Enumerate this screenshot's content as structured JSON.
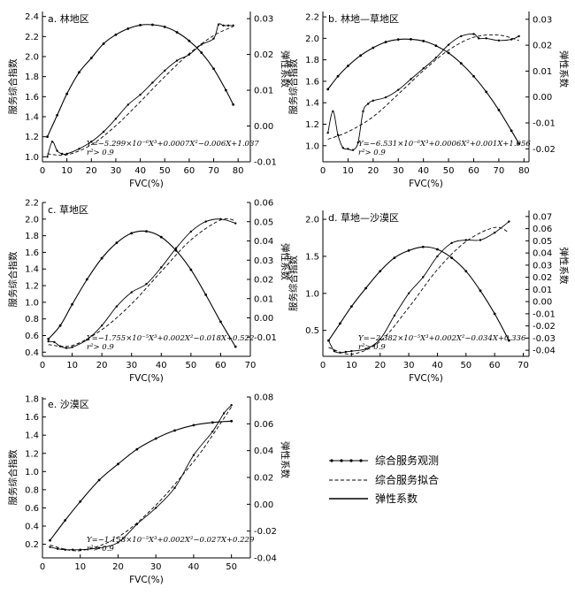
{
  "legend": {
    "observed": "综合服务观测",
    "fitted": "综合服务拟合",
    "elasticity": "弹性系数"
  },
  "chart_data": [
    {
      "id": "a",
      "type": "line",
      "title": "a. 林地区",
      "xlabel": "FVC(%)",
      "ylabel": "服务综合指数",
      "y2label": "弹性系数",
      "xlim": [
        0,
        85
      ],
      "xticks": [
        0,
        10,
        20,
        30,
        40,
        50,
        60,
        70,
        80
      ],
      "ylim": [
        0.95,
        2.45
      ],
      "yticks": [
        1.0,
        1.2,
        1.4,
        1.6,
        1.8,
        2.0,
        2.2,
        2.4
      ],
      "y2lim": [
        -0.01,
        0.032
      ],
      "y2ticks": [
        -0.01,
        0.0,
        0.01,
        0.02,
        0.03
      ],
      "equation": "Y=−5.299×10⁻⁶X³+0.0007X²−0.006X+1.037",
      "r2": "r²> 0.9",
      "observed": {
        "x": [
          2,
          4,
          6,
          8,
          10,
          15,
          20,
          25,
          30,
          35,
          40,
          45,
          50,
          55,
          60,
          65,
          70,
          72,
          74,
          76,
          78
        ],
        "y": [
          1.0,
          1.15,
          1.06,
          1.03,
          1.03,
          1.08,
          1.15,
          1.25,
          1.38,
          1.52,
          1.62,
          1.74,
          1.86,
          1.96,
          2.02,
          2.12,
          2.18,
          2.32,
          2.31,
          2.31,
          2.31
        ]
      },
      "fitted": {
        "x": [
          2,
          10,
          20,
          30,
          40,
          50,
          60,
          70,
          78
        ],
        "y": [
          1.03,
          1.02,
          1.12,
          1.31,
          1.55,
          1.8,
          2.03,
          2.21,
          2.3
        ]
      },
      "elasticity": {
        "x": [
          2,
          6,
          10,
          15,
          20,
          25,
          30,
          35,
          40,
          45,
          50,
          55,
          60,
          65,
          70,
          75,
          78
        ],
        "y": [
          -0.003,
          0.003,
          0.009,
          0.015,
          0.019,
          0.023,
          0.0255,
          0.0272,
          0.0282,
          0.0283,
          0.0277,
          0.0262,
          0.0238,
          0.0205,
          0.016,
          0.01,
          0.006
        ]
      }
    },
    {
      "id": "b",
      "type": "line",
      "title": "b. 林地—草地区",
      "xlabel": "FVC(%)",
      "ylabel": "服务综合指数",
      "y2label": "弹性系数",
      "xlim": [
        0,
        82
      ],
      "xticks": [
        0,
        10,
        20,
        30,
        40,
        50,
        60,
        70,
        80
      ],
      "ylim": [
        0.85,
        2.25
      ],
      "yticks": [
        0.8,
        1.0,
        1.2,
        1.4,
        1.6,
        1.8,
        2.0,
        2.2
      ],
      "y2lim": [
        -0.025,
        0.033
      ],
      "y2ticks": [
        -0.02,
        -0.01,
        0.0,
        0.01,
        0.02,
        0.03
      ],
      "equation": "Y=−6.531×10⁻⁶X³+0.0006X²+0.001X+1.056",
      "r2": "r²> 0.9",
      "observed": {
        "x": [
          2,
          4,
          6,
          8,
          10,
          12,
          14,
          16,
          18,
          20,
          25,
          30,
          35,
          40,
          45,
          50,
          55,
          60,
          62,
          65,
          70,
          75,
          78
        ],
        "y": [
          1.12,
          1.32,
          1.1,
          0.98,
          0.97,
          0.96,
          1.03,
          1.32,
          1.39,
          1.42,
          1.45,
          1.52,
          1.62,
          1.72,
          1.82,
          1.94,
          2.02,
          2.04,
          2.0,
          2.0,
          1.98,
          1.99,
          2.02
        ]
      },
      "fitted": {
        "x": [
          2,
          10,
          20,
          30,
          40,
          50,
          60,
          70,
          78
        ],
        "y": [
          1.06,
          1.13,
          1.27,
          1.48,
          1.7,
          1.89,
          2.01,
          2.03,
          1.98
        ]
      },
      "elasticity": {
        "x": [
          2,
          6,
          10,
          15,
          20,
          25,
          30,
          35,
          40,
          45,
          50,
          55,
          60,
          65,
          70,
          75,
          78
        ],
        "y": [
          0.003,
          0.008,
          0.012,
          0.016,
          0.019,
          0.0212,
          0.0222,
          0.0223,
          0.0216,
          0.0198,
          0.017,
          0.013,
          0.008,
          0.002,
          -0.005,
          -0.013,
          -0.018
        ]
      }
    },
    {
      "id": "c",
      "type": "line",
      "title": "c. 草地区",
      "xlabel": "FVC(%)",
      "ylabel": "服务综合指数",
      "y2label": "弹性系数",
      "xlim": [
        0,
        70
      ],
      "xticks": [
        0,
        10,
        20,
        30,
        40,
        50,
        60,
        70
      ],
      "ylim": [
        0.35,
        2.2
      ],
      "yticks": [
        0.4,
        0.6,
        0.8,
        1.0,
        1.2,
        1.4,
        1.6,
        1.8,
        2.0,
        2.2
      ],
      "y2lim": [
        -0.02,
        0.06
      ],
      "y2ticks": [
        -0.01,
        0.0,
        0.01,
        0.02,
        0.03,
        0.04,
        0.05,
        0.06
      ],
      "equation": "Y=−1.755×10⁻⁵X³+0.002X²−0.018X+0.522",
      "r2": "r²> 0.9",
      "observed": {
        "x": [
          2,
          4,
          6,
          8,
          10,
          15,
          20,
          25,
          30,
          35,
          40,
          45,
          50,
          55,
          60,
          65
        ],
        "y": [
          0.53,
          0.52,
          0.47,
          0.45,
          0.46,
          0.55,
          0.72,
          0.95,
          1.12,
          1.22,
          1.42,
          1.65,
          1.85,
          1.97,
          2.0,
          1.95
        ]
      },
      "fitted": {
        "x": [
          2,
          10,
          20,
          30,
          40,
          50,
          60,
          65
        ],
        "y": [
          0.49,
          0.48,
          0.67,
          0.98,
          1.37,
          1.75,
          1.99,
          1.98
        ]
      },
      "elasticity": {
        "x": [
          2,
          6,
          10,
          15,
          20,
          25,
          30,
          35,
          40,
          45,
          50,
          55,
          60,
          65
        ],
        "y": [
          -0.011,
          -0.004,
          0.007,
          0.02,
          0.031,
          0.039,
          0.044,
          0.045,
          0.042,
          0.035,
          0.025,
          0.012,
          -0.002,
          -0.015
        ]
      }
    },
    {
      "id": "d",
      "type": "line",
      "title": "d. 草地—沙漠区",
      "xlabel": "FVC(%)",
      "ylabel": "服务综合指数",
      "y2label": "弹性系数",
      "xlim": [
        0,
        72
      ],
      "xticks": [
        0,
        10,
        20,
        30,
        40,
        50,
        60,
        70
      ],
      "ylim": [
        0.15,
        2.12
      ],
      "yticks": [
        0.5,
        1.0,
        1.5,
        2.0
      ],
      "y2lim": [
        -0.045,
        0.075
      ],
      "y2ticks": [
        -0.04,
        -0.03,
        -0.02,
        -0.01,
        0.0,
        0.01,
        0.02,
        0.03,
        0.04,
        0.05,
        0.06,
        0.07
      ],
      "equation": "Y=−2.382×10⁻⁵X³+0.002X²−0.034X+0.336",
      "r2": "r²> 0.9",
      "observed": {
        "x": [
          2,
          4,
          6,
          8,
          10,
          15,
          20,
          25,
          30,
          35,
          40,
          45,
          50,
          55,
          60,
          65
        ],
        "y": [
          0.36,
          0.22,
          0.2,
          0.21,
          0.22,
          0.25,
          0.38,
          0.7,
          1.0,
          1.22,
          1.5,
          1.68,
          1.72,
          1.72,
          1.82,
          1.97
        ]
      },
      "fitted": {
        "x": [
          2,
          10,
          20,
          30,
          40,
          50,
          60,
          65
        ],
        "y": [
          0.27,
          0.18,
          0.35,
          0.81,
          1.32,
          1.7,
          1.89,
          1.82
        ]
      },
      "elasticity": {
        "x": [
          2,
          6,
          10,
          15,
          20,
          25,
          30,
          35,
          40,
          45,
          50,
          55,
          60,
          65
        ],
        "y": [
          -0.032,
          -0.018,
          -0.004,
          0.011,
          0.025,
          0.036,
          0.042,
          0.045,
          0.043,
          0.036,
          0.025,
          0.009,
          -0.01,
          -0.032
        ]
      }
    },
    {
      "id": "e",
      "type": "line",
      "title": "e. 沙漠区",
      "xlabel": "FVC(%)",
      "ylabel": "服务综合指数",
      "y2label": "弹性系数",
      "xlim": [
        0,
        55
      ],
      "xticks": [
        0,
        10,
        20,
        30,
        40,
        50
      ],
      "ylim": [
        0.05,
        1.82
      ],
      "yticks": [
        0.2,
        0.4,
        0.6,
        0.8,
        1.0,
        1.2,
        1.4,
        1.6,
        1.8
      ],
      "y2lim": [
        -0.04,
        0.08
      ],
      "y2ticks": [
        -0.04,
        -0.02,
        0.0,
        0.02,
        0.04,
        0.06,
        0.08
      ],
      "equation": "Y=−1.158×10⁻⁵X³+0.002X²−0.027X+0.229",
      "r2": "r²> 0.9",
      "observed": {
        "x": [
          2,
          4,
          6,
          8,
          10,
          15,
          20,
          25,
          30,
          35,
          40,
          45,
          48,
          50
        ],
        "y": [
          0.17,
          0.15,
          0.14,
          0.14,
          0.14,
          0.16,
          0.22,
          0.42,
          0.6,
          0.82,
          1.18,
          1.44,
          1.64,
          1.73
        ]
      },
      "fitted": {
        "x": [
          2,
          10,
          20,
          30,
          40,
          45,
          50
        ],
        "y": [
          0.19,
          0.13,
          0.28,
          0.63,
          1.11,
          1.4,
          1.71
        ]
      },
      "elasticity": {
        "x": [
          2,
          6,
          10,
          15,
          20,
          25,
          30,
          35,
          40,
          45,
          50
        ],
        "y": [
          -0.027,
          -0.012,
          0.002,
          0.018,
          0.03,
          0.041,
          0.049,
          0.055,
          0.059,
          0.061,
          0.062
        ]
      }
    }
  ]
}
